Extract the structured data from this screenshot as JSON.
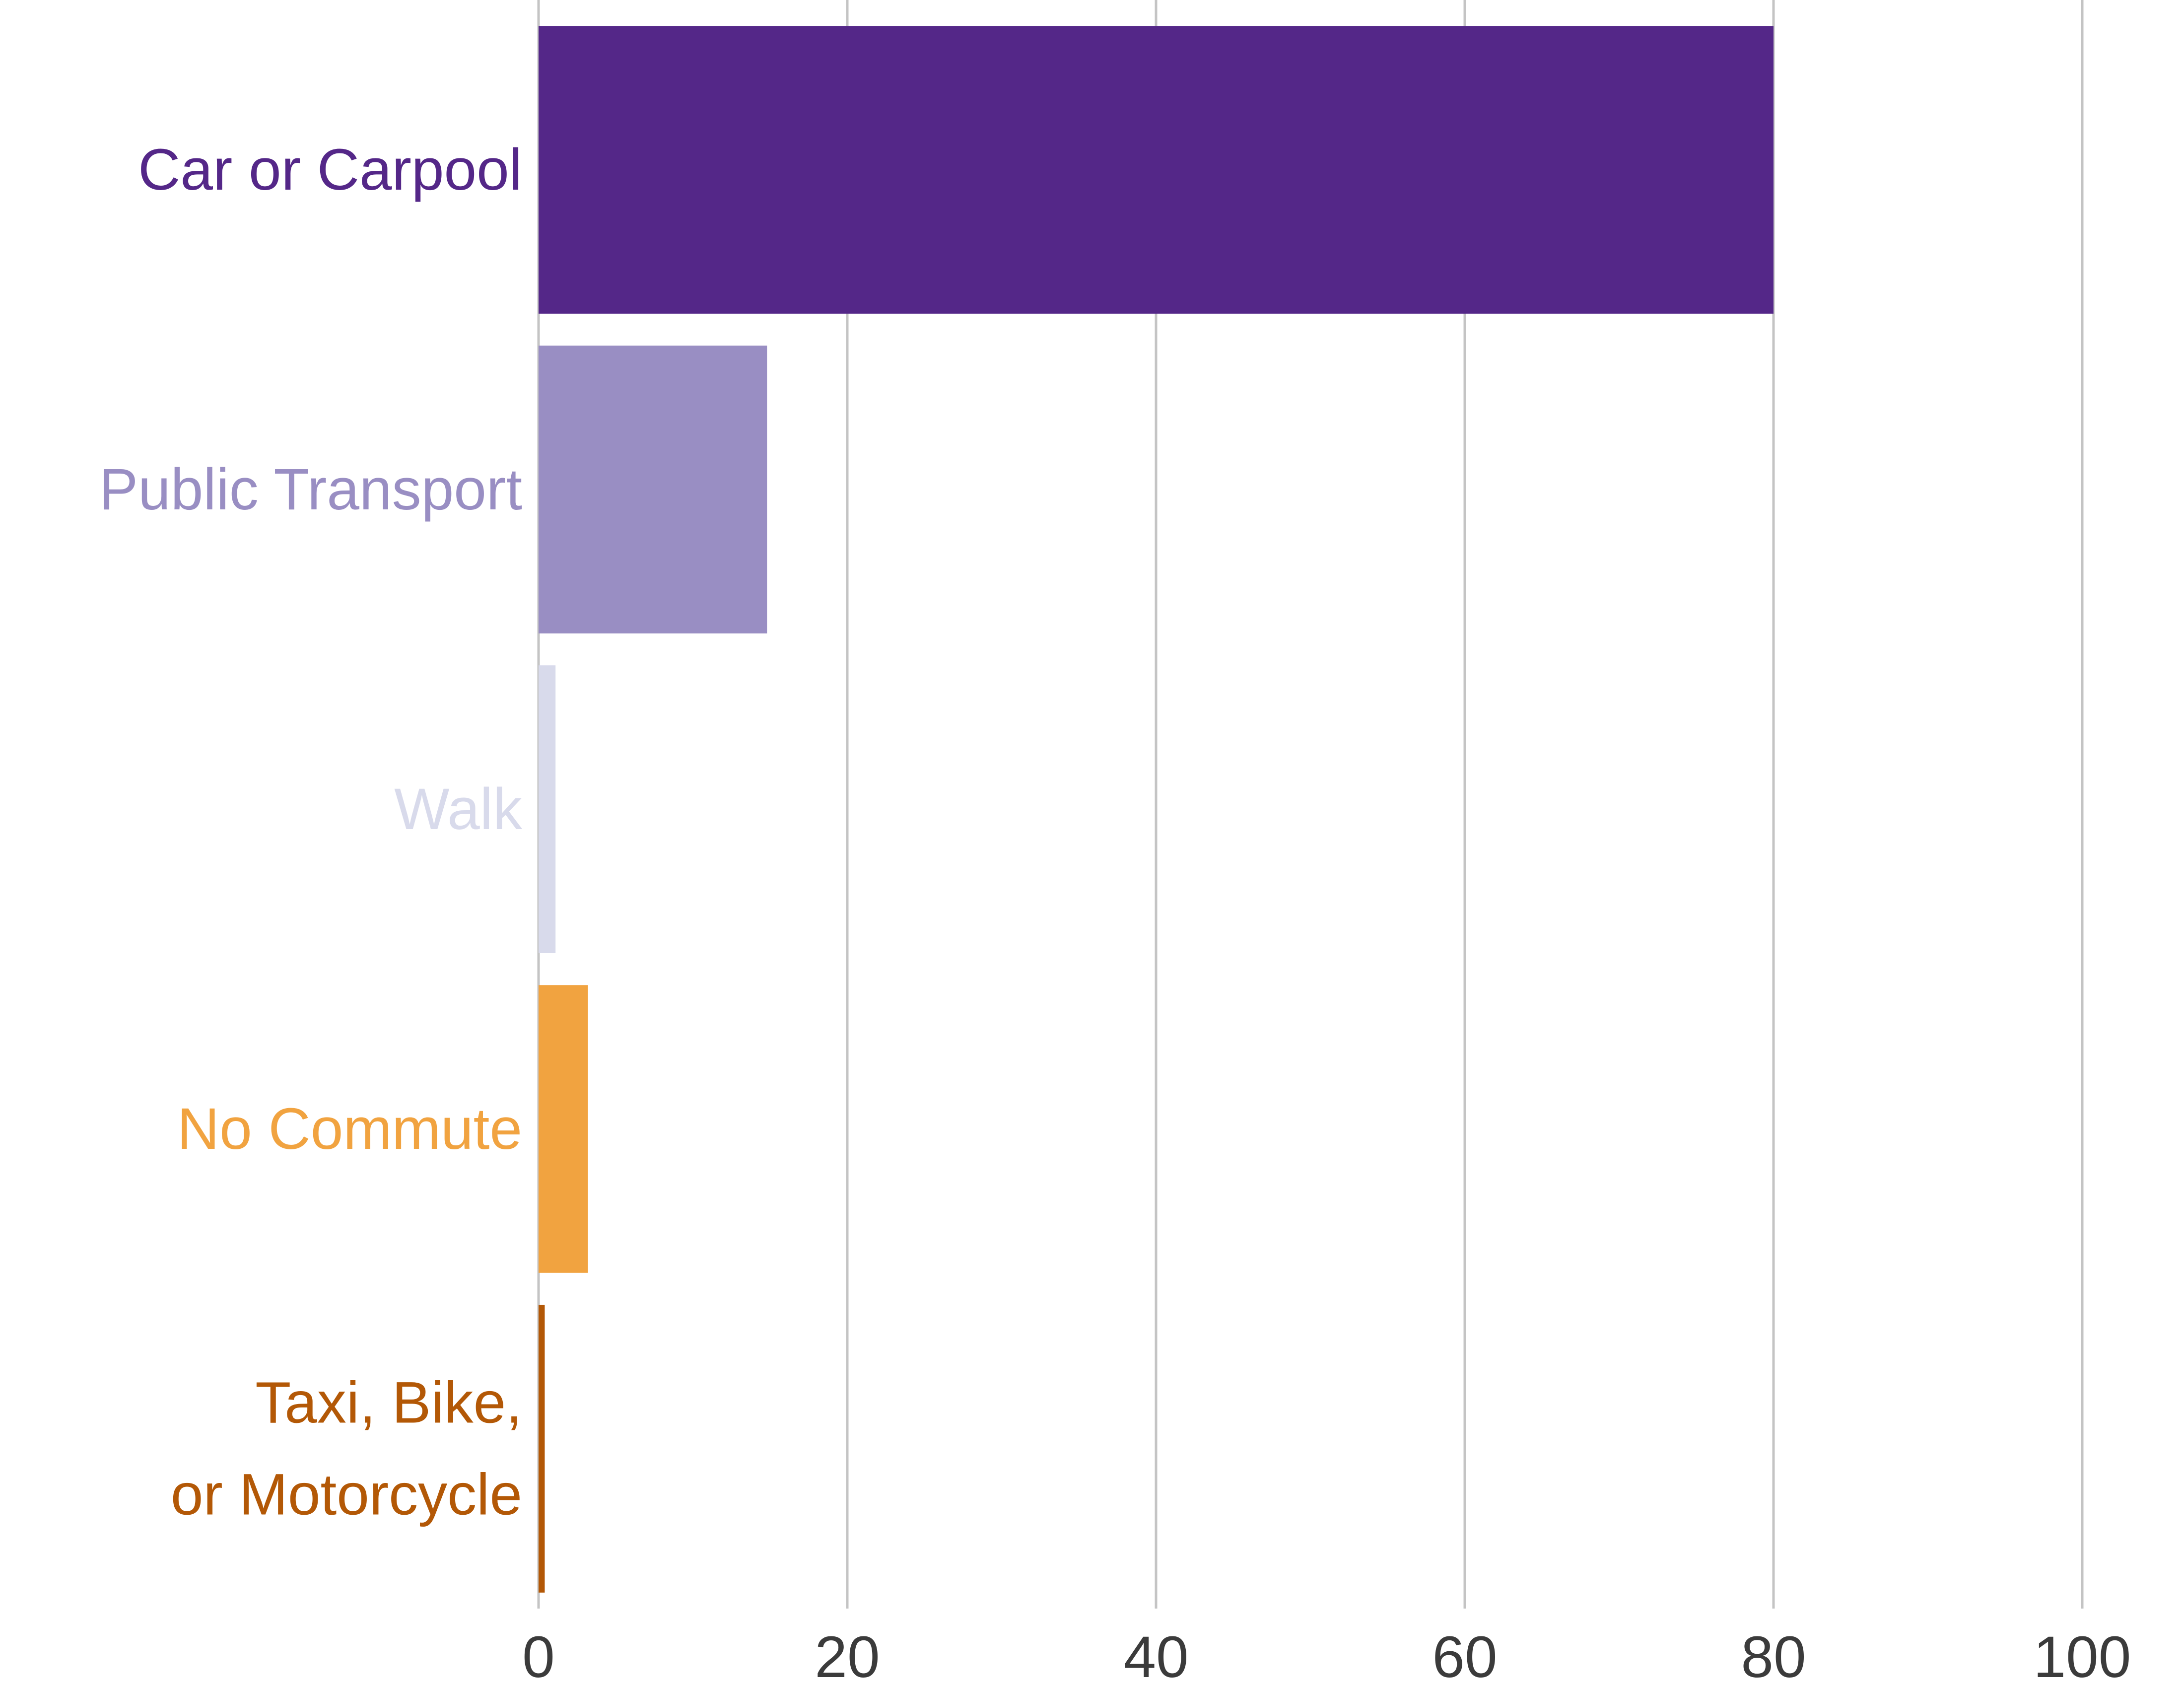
{
  "chart_data": {
    "type": "bar",
    "orientation": "horizontal",
    "categories": [
      "Car or Carpool",
      "Public Transport",
      "Walk",
      "No Commute",
      "Taxi, Bike,\nor Motorcycle"
    ],
    "category_lines": [
      [
        "Car or Carpool"
      ],
      [
        "Public Transport"
      ],
      [
        "Walk"
      ],
      [
        "No Commute"
      ],
      [
        "Taxi, Bike,",
        "or Motorcycle"
      ]
    ],
    "values": [
      80.0,
      14.8,
      1.1,
      3.2,
      0.4
    ],
    "colors": [
      "#542788",
      "#998ec3",
      "#d8daeb",
      "#f1a340",
      "#b35806"
    ],
    "xlim": [
      0,
      100
    ],
    "xticks": [
      0,
      20,
      40,
      60,
      80,
      100
    ],
    "tick_labels": [
      "0",
      "20",
      "40",
      "60",
      "80",
      "100"
    ],
    "grid": "vertical",
    "title": "",
    "xlabel": "",
    "ylabel": ""
  }
}
